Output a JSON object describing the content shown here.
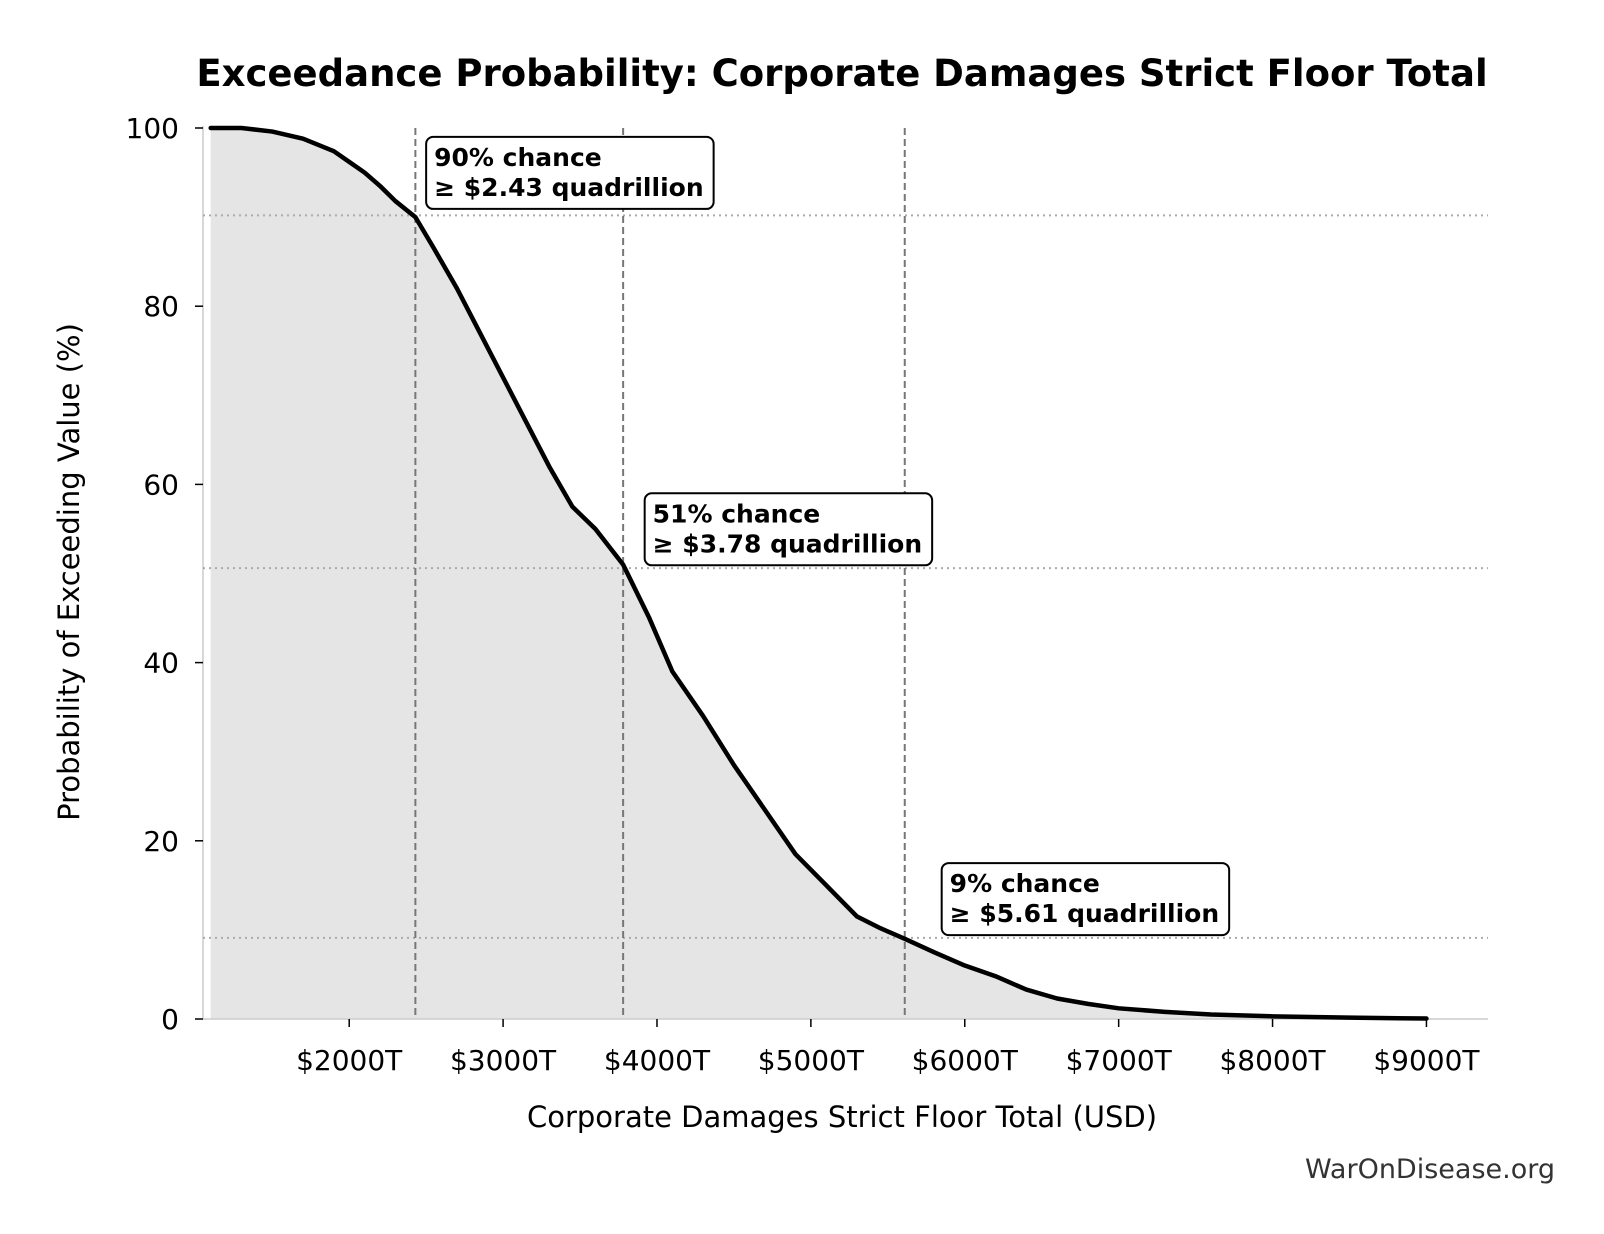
{
  "chart_data": {
    "type": "area",
    "title": "Exceedance Probability: Corporate Damages Strict Floor Total",
    "xlabel": "Corporate Damages Strict Floor Total (USD)",
    "ylabel": "Probability of Exceeding Value (%)",
    "xlim": [
      1050,
      9400
    ],
    "ylim": [
      0,
      100
    ],
    "x_tick_values": [
      2000,
      3000,
      4000,
      5000,
      6000,
      7000,
      8000,
      9000
    ],
    "x_tick_labels": [
      "$2000T",
      "$3000T",
      "$4000T",
      "$5000T",
      "$6000T",
      "$7000T",
      "$8000T",
      "$9000T"
    ],
    "y_tick_values": [
      0,
      20,
      40,
      60,
      80,
      100
    ],
    "y_tick_labels": [
      "0",
      "20",
      "40",
      "60",
      "80",
      "100"
    ],
    "grid": false,
    "curve": {
      "x": [
        1100,
        1300,
        1500,
        1700,
        1900,
        2000,
        2100,
        2200,
        2300,
        2430,
        2550,
        2700,
        2850,
        3000,
        3150,
        3300,
        3450,
        3600,
        3780,
        3950,
        4100,
        4300,
        4500,
        4700,
        4900,
        5100,
        5300,
        5450,
        5610,
        5800,
        6000,
        6200,
        6400,
        6600,
        6800,
        7000,
        7300,
        7600,
        8000,
        8500,
        9000
      ],
      "y": [
        100,
        100,
        99.6,
        98.8,
        97.4,
        96.2,
        95,
        93.5,
        91.8,
        90,
        86.5,
        82,
        77,
        72,
        67,
        62,
        57.5,
        55,
        51,
        45,
        39,
        34,
        28.5,
        23.5,
        18.5,
        15,
        11.5,
        10.2,
        9,
        7.5,
        6,
        4.8,
        3.3,
        2.3,
        1.7,
        1.2,
        0.8,
        0.5,
        0.3,
        0.15,
        0.05
      ]
    },
    "thresholds": [
      {
        "value": 2430,
        "prob": 90.2,
        "line1": "90% chance",
        "line2": "≥ $2.43 quadrillion",
        "box_x": 2500,
        "box_y": 99
      },
      {
        "value": 3780,
        "prob": 50.6,
        "line1": "51% chance",
        "line2": "≥ $3.78 quadrillion",
        "box_x": 3920,
        "box_y": 59
      },
      {
        "value": 5610,
        "prob": 9.1,
        "line1": "9% chance",
        "line2": "≥ $5.61 quadrillion",
        "box_x": 5850,
        "box_y": 17.5
      }
    ],
    "colors": {
      "line": "#000000",
      "fill": "#e5e5e5",
      "threshold_line": "#777777",
      "hline": "#aaaaaa",
      "axis": "#cccccc"
    }
  },
  "footer": "WarOnDisease.org"
}
